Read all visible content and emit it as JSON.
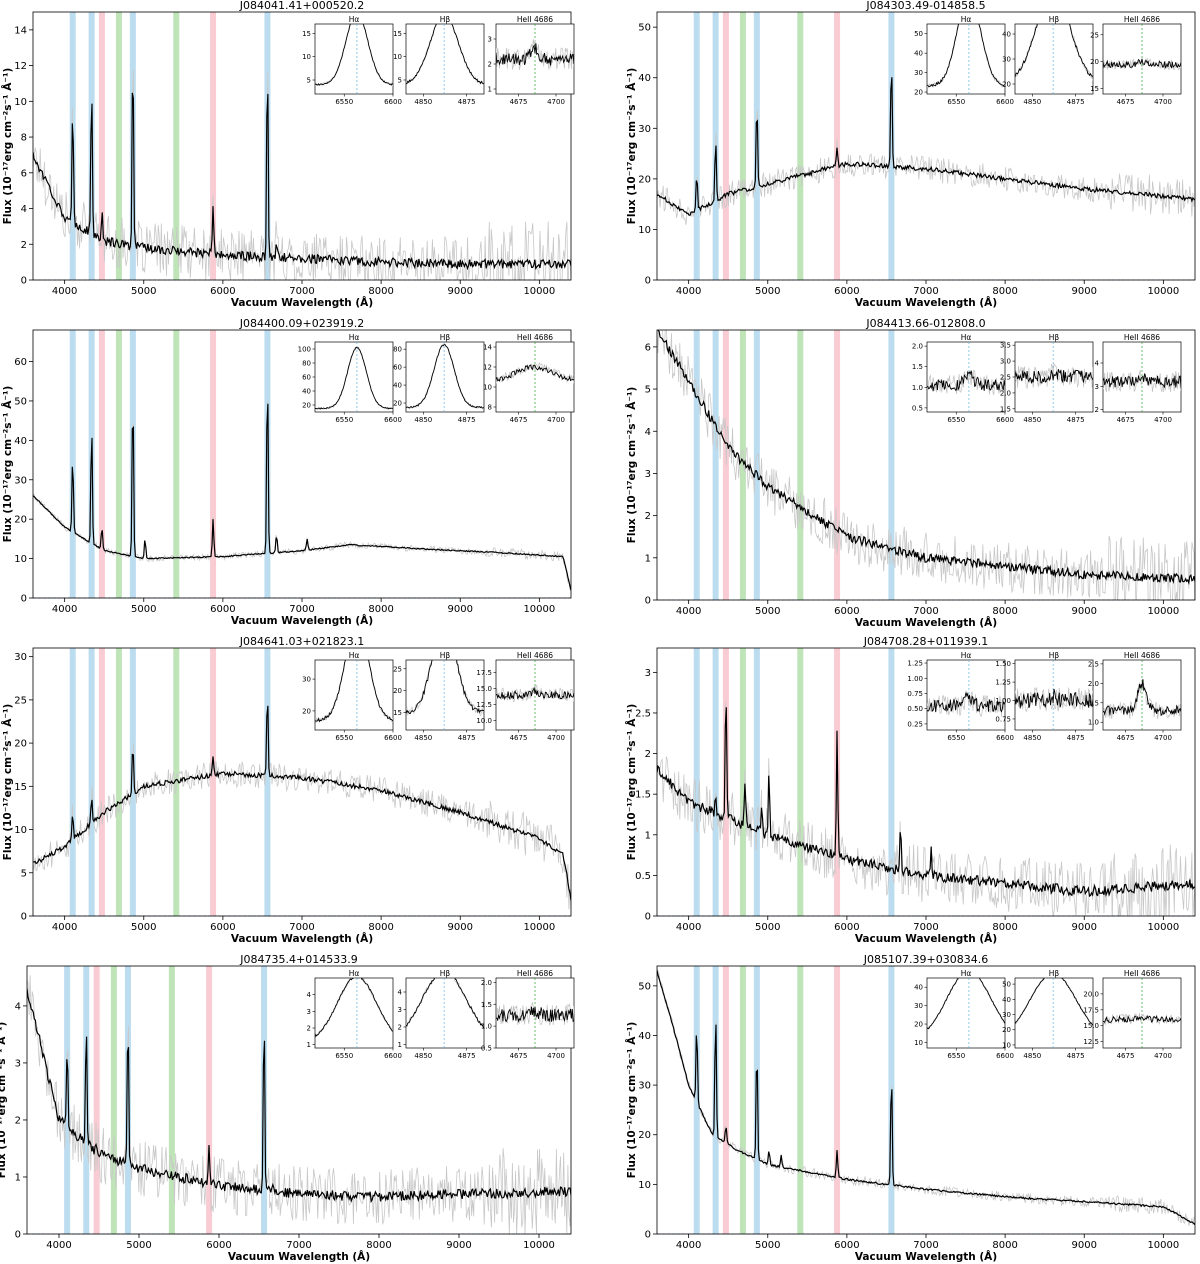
{
  "figure": {
    "axis_x_label": "Vacuum Wavelength (Å)",
    "axis_y_label": "Flux (10⁻¹⁷erg cm⁻²s⁻¹ Å⁻¹)",
    "line_bands": {
      "balmer": {
        "color": "#a6d2ea",
        "wavelengths": [
          4102,
          4341,
          4862,
          6563
        ]
      },
      "helium_ii": {
        "color": "#a9dba0",
        "wavelengths": [
          4686,
          5411
        ]
      },
      "helium_i": {
        "color": "#f7b9c4",
        "wavelengths": [
          4471,
          5876
        ]
      },
      "noise_color": "#c8c8c8",
      "spectrum_color": "#000000"
    },
    "inset_titles": [
      "Hα",
      "Hβ",
      "HeII 4686"
    ],
    "inset_xticks": {
      "Hα": [
        "6550",
        "6600"
      ],
      "Hβ": [
        "4850",
        "4875"
      ],
      "HeII 4686": [
        "4675",
        "4700"
      ]
    }
  },
  "chart_data": [
    {
      "type": "line",
      "title": "J084041.41+000520.2",
      "xlim": [
        3600,
        10400
      ],
      "ylim": [
        0,
        15
      ],
      "yticks": [
        0,
        2,
        4,
        6,
        8,
        10,
        12,
        14
      ],
      "xticks": [
        4000,
        5000,
        6000,
        7000,
        8000,
        9000,
        10000
      ],
      "continuum": [
        [
          3600,
          7.0
        ],
        [
          4000,
          3.5
        ],
        [
          4500,
          2.2
        ],
        [
          5000,
          1.8
        ],
        [
          6000,
          1.4
        ],
        [
          7000,
          1.2
        ],
        [
          8000,
          1.0
        ],
        [
          9000,
          0.9
        ],
        [
          10400,
          0.9
        ]
      ],
      "lines": [
        [
          4102,
          9.5
        ],
        [
          4341,
          11.0
        ],
        [
          4862,
          12.8
        ],
        [
          6563,
          12.5
        ],
        [
          5876,
          4.0
        ],
        [
          4471,
          3.8
        ],
        [
          6678,
          2.2
        ]
      ],
      "noise": 1.5,
      "insets": [
        {
          "ylim": [
            2,
            17
          ],
          "yticks": [
            5,
            10,
            15
          ],
          "base": 4,
          "peak": 15.5,
          "width": 0.14,
          "noise": 0.3
        },
        {
          "ylim": [
            2,
            17
          ],
          "yticks": [
            5,
            10,
            15
          ],
          "base": 4,
          "peak": 15,
          "width": 0.18,
          "noise": 0.4
        },
        {
          "ylim": [
            0.8,
            3.6
          ],
          "yticks": [
            1,
            2,
            3
          ],
          "base": 2.2,
          "peak": 0.4,
          "width": 0.05,
          "noise": 0.45
        }
      ]
    },
    {
      "type": "line",
      "title": "J084303.49-014858.5",
      "xlim": [
        3600,
        10400
      ],
      "ylim": [
        0,
        53
      ],
      "yticks": [
        0,
        10,
        20,
        30,
        40,
        50
      ],
      "xticks": [
        4000,
        5000,
        6000,
        7000,
        8000,
        9000,
        10000
      ],
      "continuum": [
        [
          3600,
          17
        ],
        [
          4000,
          13
        ],
        [
          4500,
          17
        ],
        [
          5000,
          19
        ],
        [
          6000,
          23
        ],
        [
          7000,
          22
        ],
        [
          8000,
          20
        ],
        [
          9000,
          18
        ],
        [
          10400,
          16
        ]
      ],
      "lines": [
        [
          4102,
          21
        ],
        [
          4341,
          28
        ],
        [
          4862,
          35
        ],
        [
          6563,
          44
        ],
        [
          5876,
          26
        ]
      ],
      "noise": 2.5,
      "insets": [
        {
          "ylim": [
            19,
            55
          ],
          "yticks": [
            20,
            30,
            40,
            50
          ],
          "base": 23,
          "peak": 47,
          "width": 0.15,
          "noise": 1.2
        },
        {
          "ylim": [
            16,
            44
          ],
          "yticks": [
            20,
            30,
            40
          ],
          "base": 20,
          "peak": 37,
          "width": 0.22,
          "noise": 1.2
        },
        {
          "ylim": [
            14,
            27
          ],
          "yticks": [
            15,
            20,
            25
          ],
          "base": 19.5,
          "peak": 0.5,
          "width": 0.05,
          "noise": 1.0
        }
      ]
    },
    {
      "type": "line",
      "title": "J084400.09+023919.2",
      "xlim": [
        3600,
        10400
      ],
      "ylim": [
        0,
        68
      ],
      "yticks": [
        0,
        10,
        20,
        30,
        40,
        50,
        60
      ],
      "xticks": [
        4000,
        5000,
        6000,
        7000,
        8000,
        9000,
        10000
      ],
      "continuum": [
        [
          3600,
          26
        ],
        [
          4000,
          18
        ],
        [
          4500,
          12
        ],
        [
          5000,
          10
        ],
        [
          6000,
          10.5
        ],
        [
          7000,
          12
        ],
        [
          7600,
          13.5
        ],
        [
          8500,
          12.5
        ],
        [
          9500,
          11.5
        ],
        [
          10300,
          10.5
        ],
        [
          10400,
          2
        ]
      ],
      "lines": [
        [
          4102,
          36
        ],
        [
          4341,
          44
        ],
        [
          4862,
          53
        ],
        [
          6563,
          57
        ],
        [
          5876,
          20
        ],
        [
          4471,
          18
        ],
        [
          5016,
          15
        ],
        [
          6678,
          16
        ],
        [
          7065,
          15
        ]
      ],
      "noise": 0.8,
      "insets": [
        {
          "ylim": [
            10,
            110
          ],
          "yticks": [
            20,
            40,
            60,
            80,
            100
          ],
          "base": 15,
          "peak": 87,
          "width": 0.12,
          "noise": 1.5
        },
        {
          "ylim": [
            10,
            88
          ],
          "yticks": [
            20,
            40,
            60,
            80
          ],
          "base": 15,
          "peak": 70,
          "width": 0.13,
          "noise": 1.5
        },
        {
          "ylim": [
            7.5,
            14.5
          ],
          "yticks": [
            8,
            10,
            12,
            14
          ],
          "base": 10.5,
          "peak": 1.5,
          "width": 0.25,
          "noise": 0.45
        }
      ]
    },
    {
      "type": "line",
      "title": "J084413.66-012808.0",
      "xlim": [
        3600,
        10400
      ],
      "ylim": [
        0,
        6.4
      ],
      "yticks": [
        0,
        1,
        2,
        3,
        4,
        5,
        6
      ],
      "xticks": [
        4000,
        5000,
        6000,
        7000,
        8000,
        9000,
        10000
      ],
      "continuum": [
        [
          3600,
          6.4
        ],
        [
          4000,
          5.2
        ],
        [
          4500,
          3.6
        ],
        [
          5000,
          2.7
        ],
        [
          6000,
          1.5
        ],
        [
          7000,
          1.0
        ],
        [
          8000,
          0.8
        ],
        [
          9000,
          0.6
        ],
        [
          10400,
          0.5
        ]
      ],
      "lines": [],
      "noise": 0.6,
      "insets": [
        {
          "ylim": [
            0.4,
            2.1
          ],
          "yticks": [
            0.5,
            1.0,
            1.5,
            2.0
          ],
          "base": 1.05,
          "peak": 0.25,
          "width": 0.06,
          "noise": 0.25
        },
        {
          "ylim": [
            1.4,
            3.6
          ],
          "yticks": [
            1.5,
            2.0,
            2.5,
            3.0,
            3.5
          ],
          "base": 2.5,
          "peak": 0.1,
          "width": 0.05,
          "noise": 0.35
        },
        {
          "ylim": [
            1.9,
            4.9
          ],
          "yticks": [
            2,
            3,
            4
          ],
          "base": 3.2,
          "peak": 0.2,
          "width": 0.05,
          "noise": 0.45
        }
      ]
    },
    {
      "type": "line",
      "title": "J084641.03+021823.1",
      "xlim": [
        3600,
        10400
      ],
      "ylim": [
        0,
        31
      ],
      "yticks": [
        0,
        5,
        10,
        15,
        20,
        25,
        30
      ],
      "xticks": [
        4000,
        5000,
        6000,
        7000,
        8000,
        9000,
        10000
      ],
      "continuum": [
        [
          3600,
          6
        ],
        [
          4000,
          8
        ],
        [
          4500,
          12
        ],
        [
          5000,
          15
        ],
        [
          6000,
          16.5
        ],
        [
          7000,
          16
        ],
        [
          8000,
          14.5
        ],
        [
          9000,
          12
        ],
        [
          10000,
          9
        ],
        [
          10300,
          7
        ],
        [
          10400,
          2
        ]
      ],
      "lines": [
        [
          4102,
          12
        ],
        [
          4341,
          14
        ],
        [
          4862,
          20
        ],
        [
          6563,
          26
        ],
        [
          5876,
          18.5
        ]
      ],
      "noise": 1.6,
      "insets": [
        {
          "ylim": [
            14,
            36
          ],
          "yticks": [
            20,
            30
          ],
          "base": 17,
          "peak": 31,
          "width": 0.15,
          "noise": 0.8
        },
        {
          "ylim": [
            11,
            27
          ],
          "yticks": [
            15,
            20,
            25
          ],
          "base": 15,
          "peak": 21,
          "width": 0.15,
          "noise": 1.0
        },
        {
          "ylim": [
            8.5,
            19.5
          ],
          "yticks": [
            10.0,
            12.5,
            15.0,
            17.5
          ],
          "base": 14,
          "peak": 0.5,
          "width": 0.05,
          "noise": 1.1
        }
      ]
    },
    {
      "type": "line",
      "title": "J084708.28+011939.1",
      "xlim": [
        3600,
        10400
      ],
      "ylim": [
        0,
        3.3
      ],
      "yticks": [
        0.0,
        0.5,
        1.0,
        1.5,
        2.0,
        2.5,
        3.0
      ],
      "xticks": [
        4000,
        5000,
        6000,
        7000,
        8000,
        9000,
        10000
      ],
      "continuum": [
        [
          3600,
          1.8
        ],
        [
          4000,
          1.4
        ],
        [
          4500,
          1.2
        ],
        [
          5000,
          1.0
        ],
        [
          6000,
          0.7
        ],
        [
          7000,
          0.5
        ],
        [
          8000,
          0.4
        ],
        [
          9000,
          0.3
        ],
        [
          10400,
          0.4
        ]
      ],
      "lines": [
        [
          4471,
          2.8
        ],
        [
          5876,
          2.3
        ],
        [
          4102,
          1.3
        ],
        [
          4341,
          1.5
        ],
        [
          4713,
          1.6
        ],
        [
          5016,
          1.8
        ],
        [
          6678,
          1.05
        ],
        [
          7065,
          0.8
        ],
        [
          4922,
          1.35
        ]
      ],
      "noise": 0.35,
      "insets": [
        {
          "ylim": [
            0.15,
            1.3
          ],
          "yticks": [
            0.25,
            0.5,
            0.75,
            1.0,
            1.25
          ],
          "base": 0.55,
          "peak": 0.15,
          "width": 0.05,
          "noise": 0.18
        },
        {
          "ylim": [
            0.6,
            1.55
          ],
          "yticks": [
            0.75,
            1.0,
            1.25,
            1.5
          ],
          "base": 1.0,
          "peak": 0.05,
          "width": 0.05,
          "noise": 0.18
        },
        {
          "ylim": [
            0.8,
            2.6
          ],
          "yticks": [
            1.0,
            1.5,
            2.0,
            2.5
          ],
          "base": 1.3,
          "peak": 0.7,
          "width": 0.05,
          "noise": 0.22
        }
      ]
    },
    {
      "type": "line",
      "title": "J084735.4+014533.9",
      "xlim": [
        3600,
        10400
      ],
      "ylim": [
        0,
        4.7
      ],
      "yticks": [
        0,
        1,
        2,
        3,
        4
      ],
      "xticks": [
        4000,
        5000,
        6000,
        7000,
        8000,
        9000,
        10000
      ],
      "continuum": [
        [
          3600,
          4.3
        ],
        [
          4000,
          2.0
        ],
        [
          4500,
          1.4
        ],
        [
          5000,
          1.15
        ],
        [
          6000,
          0.85
        ],
        [
          7000,
          0.7
        ],
        [
          8000,
          0.65
        ],
        [
          9000,
          0.7
        ],
        [
          10400,
          0.75
        ]
      ],
      "lines": [
        [
          4102,
          3.3
        ],
        [
          4341,
          3.7
        ],
        [
          4862,
          3.9
        ],
        [
          6563,
          3.9
        ],
        [
          5876,
          1.6
        ],
        [
          4471,
          1.5
        ],
        [
          6678,
          0.9
        ]
      ],
      "noise": 0.5,
      "insets": [
        {
          "ylim": [
            0.8,
            5.0
          ],
          "yticks": [
            1,
            2,
            3,
            4
          ],
          "base": 1.1,
          "peak": 4.0,
          "width": 0.25,
          "noise": 0.1
        },
        {
          "ylim": [
            0.8,
            4.8
          ],
          "yticks": [
            1,
            2,
            3,
            4
          ],
          "base": 1.2,
          "peak": 4.0,
          "width": 0.28,
          "noise": 0.15
        },
        {
          "ylim": [
            0.5,
            2.1
          ],
          "yticks": [
            0.5,
            1.0,
            1.5,
            2.0
          ],
          "base": 1.25,
          "peak": 0.1,
          "width": 0.05,
          "noise": 0.25
        }
      ]
    },
    {
      "type": "line",
      "title": "J085107.39+030834.6",
      "xlim": [
        3600,
        10400
      ],
      "ylim": [
        0,
        54
      ],
      "yticks": [
        0,
        10,
        20,
        30,
        40,
        50
      ],
      "xticks": [
        4000,
        5000,
        6000,
        7000,
        8000,
        9000,
        10000
      ],
      "continuum": [
        [
          3600,
          53
        ],
        [
          3800,
          42
        ],
        [
          4000,
          30
        ],
        [
          4300,
          20
        ],
        [
          4600,
          17
        ],
        [
          5000,
          14
        ],
        [
          6000,
          11
        ],
        [
          7000,
          9
        ],
        [
          8000,
          7.5
        ],
        [
          9000,
          6.5
        ],
        [
          10000,
          5.5
        ],
        [
          10400,
          2
        ]
      ],
      "lines": [
        [
          4102,
          42
        ],
        [
          4341,
          45
        ],
        [
          4862,
          38
        ],
        [
          6563,
          33
        ],
        [
          5876,
          17
        ],
        [
          4471,
          22
        ],
        [
          5016,
          17
        ],
        [
          5169,
          16
        ]
      ],
      "noise": 1.0,
      "insets": [
        {
          "ylim": [
            7,
            45
          ],
          "yticks": [
            10,
            20,
            30,
            40
          ],
          "base": 11,
          "peak": 38,
          "width": 0.28,
          "noise": 0.8
        },
        {
          "ylim": [
            8,
            54
          ],
          "yticks": [
            10,
            20,
            30,
            40,
            50
          ],
          "base": 12,
          "peak": 45,
          "width": 0.3,
          "noise": 0.8
        },
        {
          "ylim": [
            11.5,
            22.5
          ],
          "yticks": [
            12.5,
            15.0,
            17.5,
            20.0
          ],
          "base": 16,
          "peak": 0.3,
          "width": 0.05,
          "noise": 0.8
        }
      ]
    }
  ]
}
